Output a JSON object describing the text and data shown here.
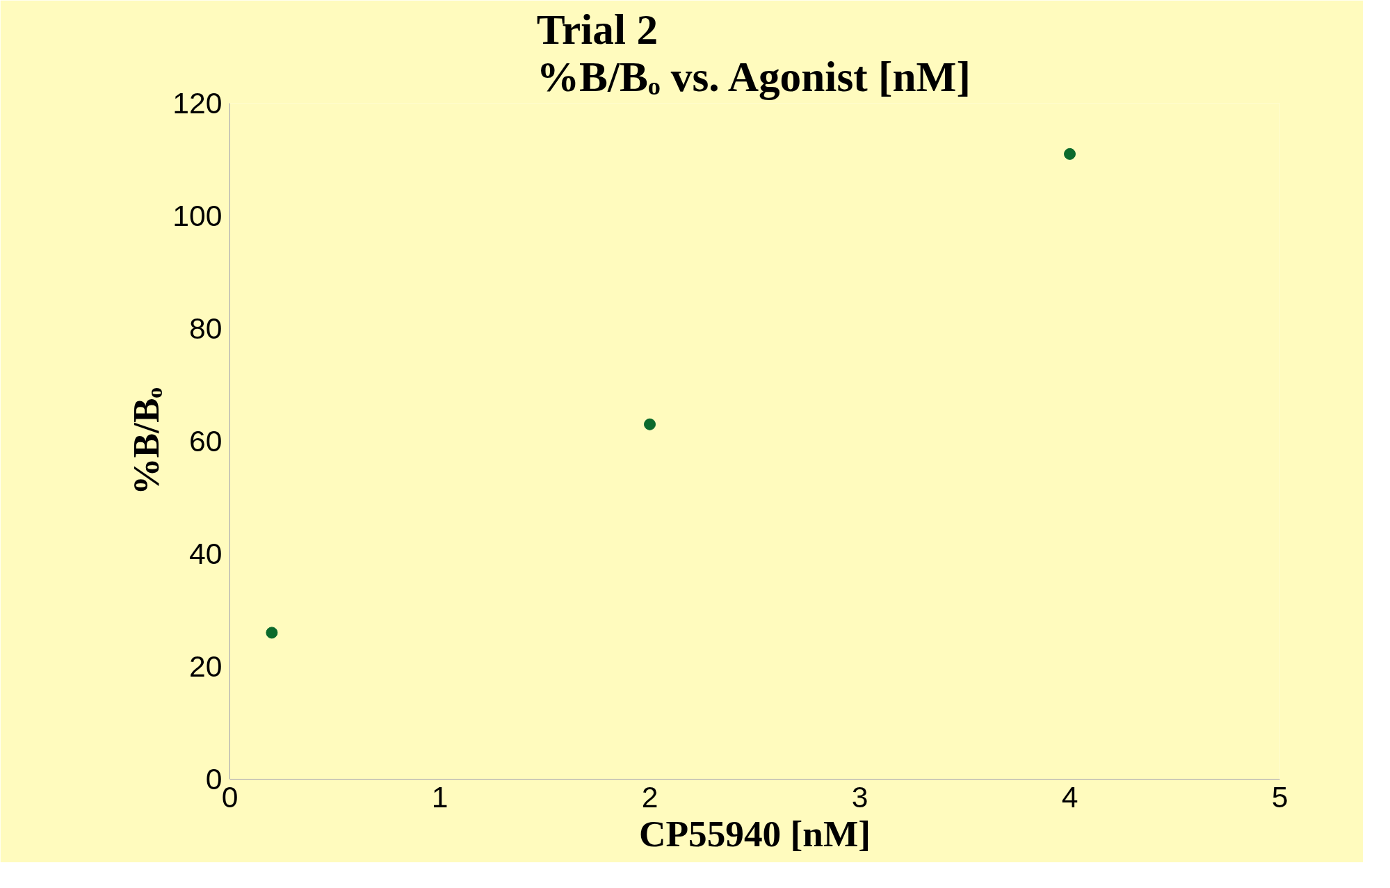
{
  "chart_data": {
    "type": "scatter",
    "title": "Trial 2\n%B/Bₒ vs. Agonist [nM]",
    "xlabel": "CP55940 [nM]",
    "ylabel": "%B/Bₒ",
    "x": [
      0.2,
      2,
      4
    ],
    "series": [
      {
        "color": "#0b6a2c",
        "values": [
          26,
          63,
          111
        ]
      }
    ],
    "xlim": [
      0,
      5
    ],
    "xticks": [
      0,
      1,
      2,
      3,
      4,
      5
    ],
    "ylim": [
      0,
      120
    ],
    "yticks": [
      0,
      20,
      40,
      60,
      80,
      100,
      120
    ],
    "grid": false,
    "marker": "circle"
  }
}
